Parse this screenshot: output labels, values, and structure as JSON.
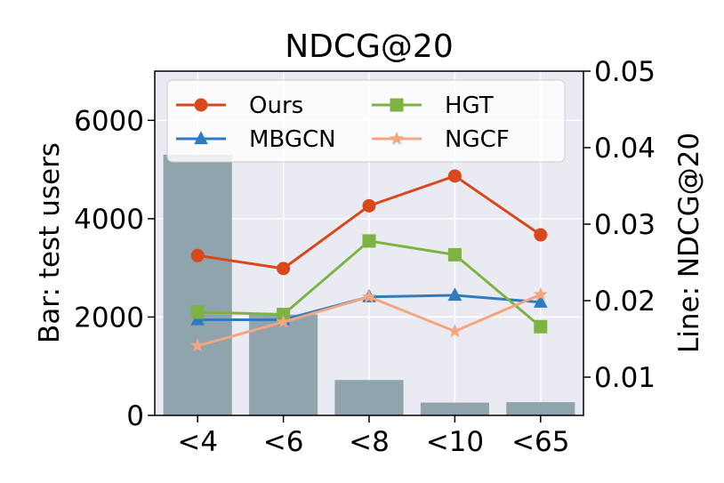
{
  "chart_data": {
    "type": "bar+line",
    "title": "NDCG@20",
    "categories": [
      "<4",
      "<6",
      "<8",
      "<10",
      "<65"
    ],
    "bar": {
      "name": "",
      "values": [
        5300,
        2050,
        720,
        260,
        270
      ],
      "color": "#90a4ae",
      "ylabel": "Bar: test users",
      "ylim": [
        0,
        7000
      ],
      "yticks": [
        0,
        2000,
        4000,
        6000
      ]
    },
    "lines": {
      "ylabel": "Line: NDCG@20",
      "ylim": [
        0.005,
        0.05
      ],
      "yticks": [
        0.01,
        0.02,
        0.03,
        0.04,
        0.05
      ],
      "series": [
        {
          "name": "Ours",
          "values": [
            0.0259,
            0.0242,
            0.0324,
            0.0363,
            0.0286
          ],
          "color": "#d9481c",
          "marker": "circle"
        },
        {
          "name": "MBGCN",
          "values": [
            0.0175,
            0.0175,
            0.0205,
            0.0207,
            0.0198
          ],
          "color": "#2e7bbf",
          "marker": "triangle"
        },
        {
          "name": "HGT",
          "values": [
            0.0185,
            0.0182,
            0.0278,
            0.026,
            0.0166
          ],
          "color": "#7cb342",
          "marker": "square"
        },
        {
          "name": "NGCF",
          "values": [
            0.0141,
            0.0172,
            0.0205,
            0.016,
            0.0208
          ],
          "color": "#f4a582",
          "marker": "star"
        }
      ]
    },
    "grid": true,
    "legend_placement": "top"
  }
}
